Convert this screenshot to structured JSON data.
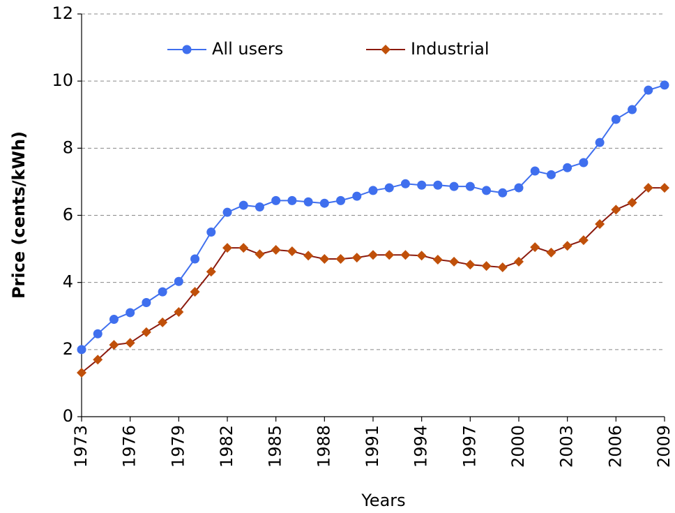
{
  "chart_data": {
    "type": "line",
    "x": [
      1973,
      1974,
      1975,
      1976,
      1977,
      1978,
      1979,
      1980,
      1981,
      1982,
      1983,
      1984,
      1985,
      1986,
      1987,
      1988,
      1989,
      1990,
      1991,
      1992,
      1993,
      1994,
      1995,
      1996,
      1997,
      1998,
      1999,
      2000,
      2001,
      2002,
      2003,
      2004,
      2005,
      2006,
      2007,
      2008,
      2009
    ],
    "series": [
      {
        "name": "All users",
        "color": "#3f6fee",
        "marker": "circle",
        "values": [
          2.0,
          2.47,
          2.9,
          3.1,
          3.4,
          3.72,
          4.03,
          4.7,
          5.5,
          6.09,
          6.3,
          6.25,
          6.44,
          6.44,
          6.4,
          6.36,
          6.44,
          6.57,
          6.74,
          6.82,
          6.94,
          6.9,
          6.9,
          6.86,
          6.86,
          6.74,
          6.67,
          6.82,
          7.32,
          7.21,
          7.42,
          7.57,
          8.17,
          8.86,
          9.15,
          9.73,
          9.88
        ]
      },
      {
        "name": "Industrial",
        "color": "#8b1a0e",
        "marker_color": "#c0500a",
        "marker": "diamond",
        "values": [
          1.31,
          1.7,
          2.14,
          2.2,
          2.52,
          2.81,
          3.12,
          3.72,
          4.32,
          5.03,
          5.03,
          4.84,
          4.97,
          4.93,
          4.8,
          4.7,
          4.7,
          4.74,
          4.82,
          4.82,
          4.82,
          4.8,
          4.68,
          4.62,
          4.53,
          4.49,
          4.45,
          4.62,
          5.05,
          4.89,
          5.09,
          5.26,
          5.74,
          6.17,
          6.38,
          6.82,
          6.82
        ]
      }
    ],
    "x_label": "Years",
    "y_label": "Price  (cents/kWh)",
    "xlim": [
      1973,
      2009
    ],
    "xticks": [
      1973,
      1976,
      1979,
      1982,
      1985,
      1988,
      1991,
      1994,
      1997,
      2000,
      2003,
      2006,
      2009
    ],
    "ylim": [
      0,
      12
    ],
    "yticks": [
      0,
      2,
      4,
      6,
      8,
      10,
      12
    ],
    "grid": true,
    "legend": "upper center"
  }
}
